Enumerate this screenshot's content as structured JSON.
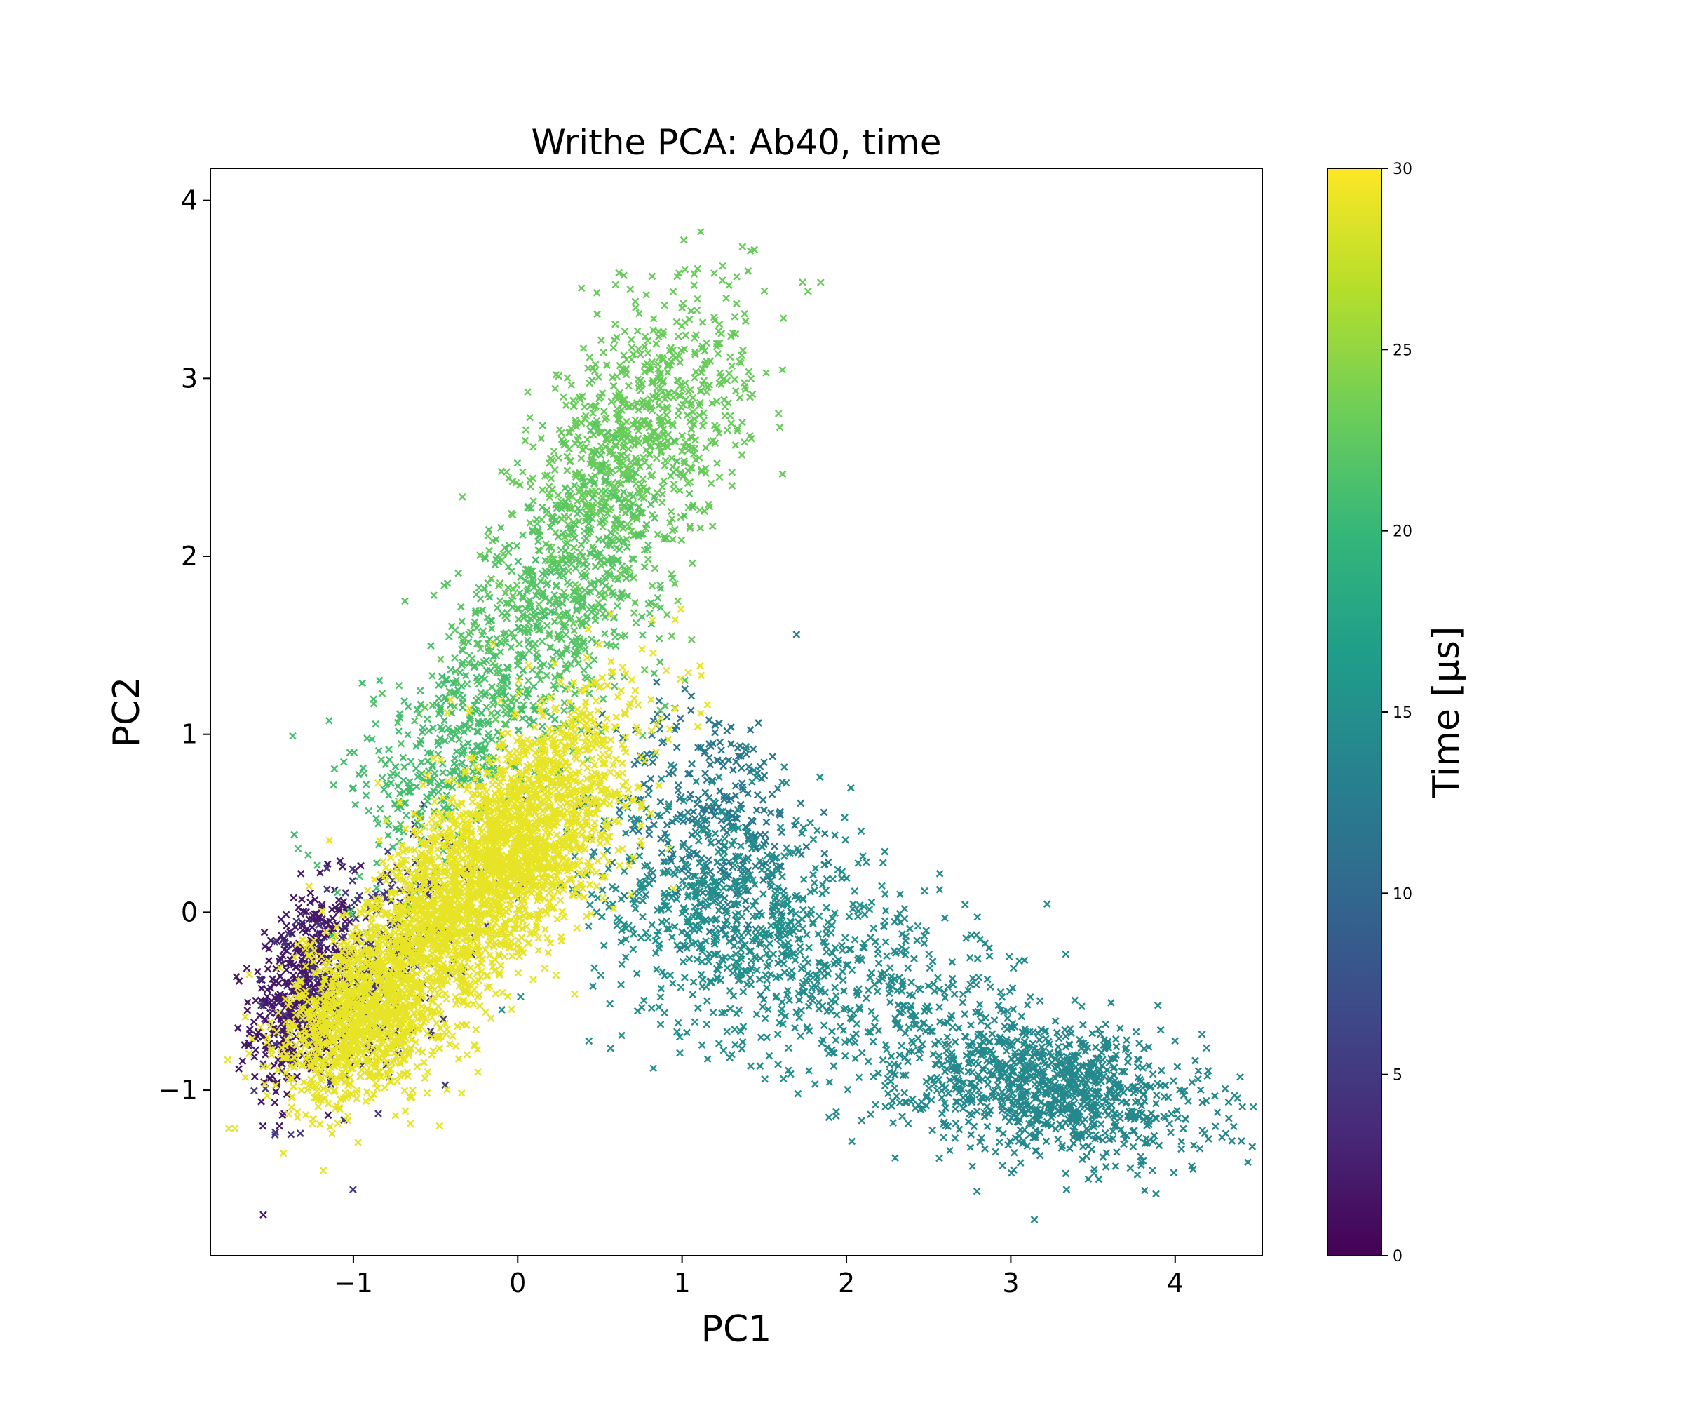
{
  "chart_data": {
    "type": "scatter",
    "title": "Writhe PCA: Ab40, time",
    "xlabel": "PC1",
    "ylabel": "PC2",
    "xlim": [
      -1.87,
      4.53
    ],
    "ylim": [
      -1.93,
      4.18
    ],
    "xticks": [
      -1,
      0,
      1,
      2,
      3,
      4
    ],
    "yticks": [
      -1,
      0,
      1,
      2,
      3,
      4
    ],
    "xtick_labels": [
      "−1",
      "0",
      "1",
      "2",
      "3",
      "4"
    ],
    "ytick_labels": [
      "−1",
      "0",
      "1",
      "2",
      "3",
      "4"
    ],
    "marker": "x",
    "grid": false,
    "colormap": "viridis",
    "colorbar": {
      "label": "Time [μs]",
      "range": [
        0,
        30
      ],
      "ticks": [
        0,
        5,
        10,
        15,
        20,
        25,
        30
      ],
      "tick_labels": [
        "0",
        "5",
        "10",
        "15",
        "20",
        "25",
        "30"
      ],
      "colors": [
        "#440154",
        "#482878",
        "#3e4989",
        "#31688e",
        "#26828e",
        "#1f9e89",
        "#35b779",
        "#6ece58",
        "#b5de2b",
        "#fde725"
      ]
    },
    "series": [
      {
        "time": 2,
        "cx": -1.3,
        "cy": -0.45,
        "sx": 0.16,
        "sy": 0.28,
        "rho": 0.3,
        "n": 500
      },
      {
        "time": 5,
        "cx": -0.85,
        "cy": -0.3,
        "sx": 0.3,
        "sy": 0.35,
        "rho": 0.5,
        "n": 300
      },
      {
        "time": 12,
        "cx": 1.2,
        "cy": 0.5,
        "sx": 0.3,
        "sy": 0.35,
        "rho": -0.2,
        "n": 350
      },
      {
        "time": 15,
        "cx": 1.35,
        "cy": -0.05,
        "sx": 0.45,
        "sy": 0.35,
        "rho": -0.2,
        "n": 700
      },
      {
        "time": 14,
        "cx": 3.3,
        "cy": -1.0,
        "sx": 0.45,
        "sy": 0.2,
        "rho": -0.3,
        "n": 900
      },
      {
        "time": 14.5,
        "cx": 2.4,
        "cy": -0.6,
        "sx": 0.45,
        "sy": 0.3,
        "rho": -0.3,
        "n": 350
      },
      {
        "time": 23,
        "cx": 0.7,
        "cy": 2.6,
        "sx": 0.35,
        "sy": 0.45,
        "rho": 0.55,
        "n": 900
      },
      {
        "time": 22,
        "cx": 0.2,
        "cy": 1.7,
        "sx": 0.35,
        "sy": 0.4,
        "rho": 0.5,
        "n": 600
      },
      {
        "time": 21,
        "cx": -0.4,
        "cy": 0.9,
        "sx": 0.3,
        "sy": 0.35,
        "rho": 0.5,
        "n": 350
      },
      {
        "time": 29,
        "cx": 0.0,
        "cy": 0.4,
        "sx": 0.35,
        "sy": 0.4,
        "rho": 0.6,
        "n": 1800
      },
      {
        "time": 29,
        "cx": -0.95,
        "cy": -0.6,
        "sx": 0.25,
        "sy": 0.25,
        "rho": 0.3,
        "n": 1000
      },
      {
        "time": 29,
        "cx": -0.5,
        "cy": -0.1,
        "sx": 0.3,
        "sy": 0.3,
        "rho": 0.5,
        "n": 800
      }
    ]
  }
}
